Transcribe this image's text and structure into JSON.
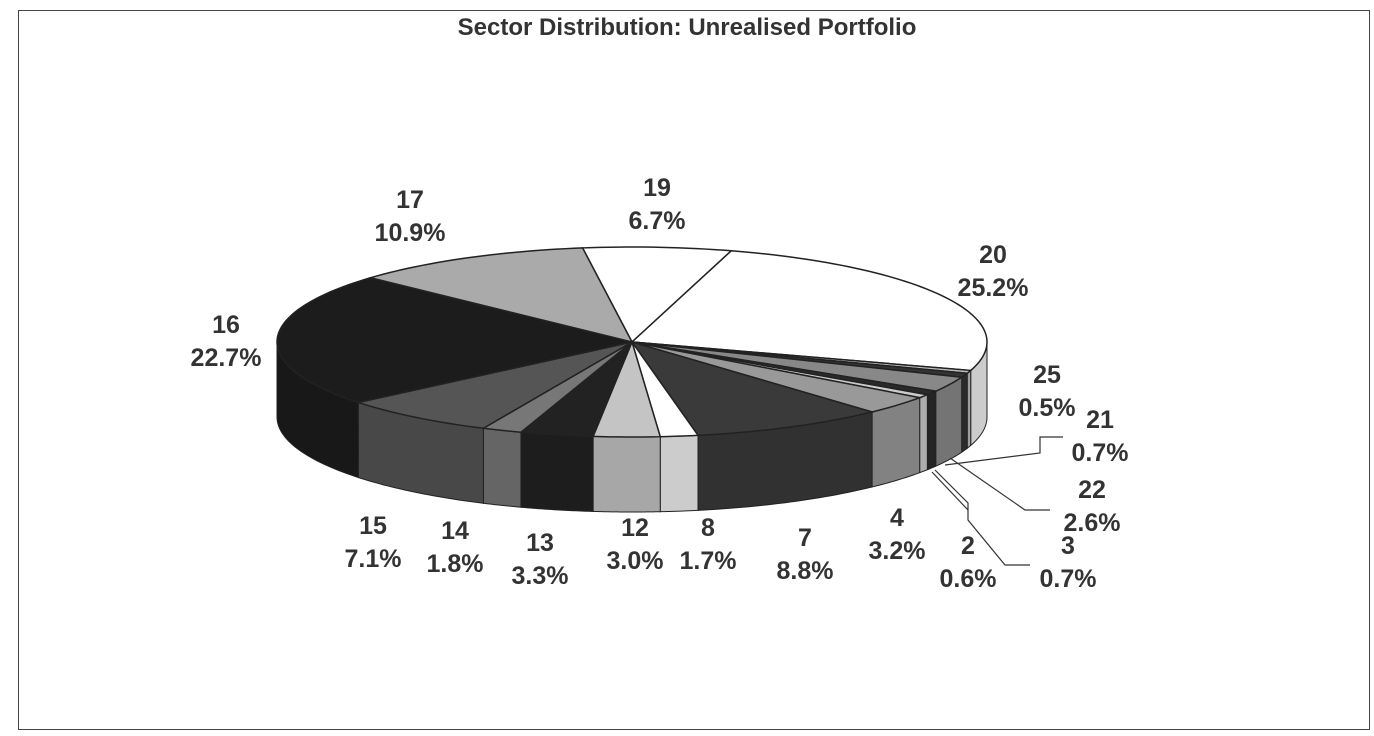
{
  "chart_data": {
    "type": "pie",
    "title": "Sector Distribution: Unrealised Portfolio",
    "style": "3d",
    "slices": [
      {
        "label": "19",
        "value": 6.7,
        "pct": "6.7%",
        "color": "#ffffff"
      },
      {
        "label": "20",
        "value": 25.2,
        "pct": "25.2%",
        "color": "#ffffff"
      },
      {
        "label": "25",
        "value": 0.5,
        "pct": "0.5%",
        "color": "#bbbbbb"
      },
      {
        "label": "21",
        "value": 0.7,
        "pct": "0.7%",
        "color": "#333333"
      },
      {
        "label": "22",
        "value": 2.6,
        "pct": "2.6%",
        "color": "#888888"
      },
      {
        "label": "3",
        "value": 0.7,
        "pct": "0.7%",
        "color": "#2a2a2a"
      },
      {
        "label": "2",
        "value": 0.6,
        "pct": "0.6%",
        "color": "#cccccc"
      },
      {
        "label": "4",
        "value": 3.2,
        "pct": "3.2%",
        "color": "#999999"
      },
      {
        "label": "7",
        "value": 8.8,
        "pct": "8.8%",
        "color": "#3a3a3a"
      },
      {
        "label": "8",
        "value": 1.7,
        "pct": "1.7%",
        "color": "#ffffff"
      },
      {
        "label": "12",
        "value": 3.0,
        "pct": "3.0%",
        "color": "#c4c4c4"
      },
      {
        "label": "13",
        "value": 3.3,
        "pct": "3.3%",
        "color": "#222222"
      },
      {
        "label": "14",
        "value": 1.8,
        "pct": "1.8%",
        "color": "#777777"
      },
      {
        "label": "15",
        "value": 7.1,
        "pct": "7.1%",
        "color": "#555555"
      },
      {
        "label": "16",
        "value": 22.7,
        "pct": "22.7%",
        "color": "#1c1c1c"
      },
      {
        "label": "17",
        "value": 10.9,
        "pct": "10.9%",
        "color": "#aaaaaa"
      }
    ]
  }
}
